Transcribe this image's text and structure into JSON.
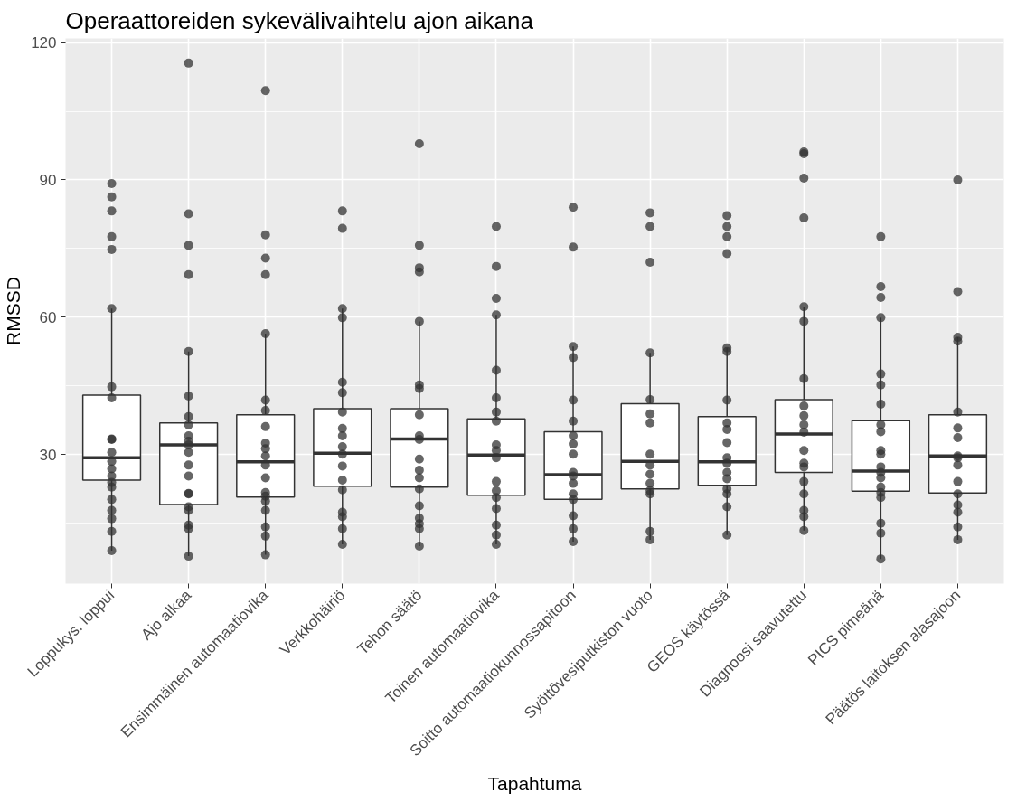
{
  "chart_data": {
    "type": "box",
    "title": "Operaattoreiden sykevälivaihtelu ajon aikana",
    "xlabel": "Tapahtuma",
    "ylabel": "RMSSD",
    "categories": [
      "Loppukys. loppui",
      "Ajo alkaa",
      "Ensimmäinen automaatiovika",
      "Verkkohäiriö",
      "Tehon säätö",
      "Toinen automaatiovika",
      "Soitto automaatiokunnossapitoon",
      "Syöttövesiputkiston vuoto",
      "GEOS käytössä",
      "Diagnoosi saavutettu",
      "PICS pimeänä",
      "Päätös laitoksen alasajoon"
    ],
    "boxes": [
      {
        "low": 9.0,
        "q1": 24.4,
        "median": 29.3,
        "q3": 43.0,
        "high": 61.9
      },
      {
        "low": 7.8,
        "q1": 19.1,
        "median": 32.1,
        "q3": 36.9,
        "high": 52.5
      },
      {
        "low": 8.1,
        "q1": 20.7,
        "median": 28.4,
        "q3": 38.7,
        "high": 56.4
      },
      {
        "low": 10.4,
        "q1": 23.1,
        "median": 30.3,
        "q3": 40.0,
        "high": 61.9
      },
      {
        "low": 10.0,
        "q1": 22.9,
        "median": 33.4,
        "q3": 40.0,
        "high": 59.1
      },
      {
        "low": 10.4,
        "q1": 21.1,
        "median": 29.9,
        "q3": 37.8,
        "high": 60.5
      },
      {
        "low": 11.0,
        "q1": 20.2,
        "median": 25.6,
        "q3": 35.0,
        "high": 53.6
      },
      {
        "low": 11.4,
        "q1": 22.5,
        "median": 28.5,
        "q3": 41.1,
        "high": 52.2
      },
      {
        "low": 12.4,
        "q1": 23.3,
        "median": 28.4,
        "q3": 38.3,
        "high": 53.3
      },
      {
        "low": 13.4,
        "q1": 26.1,
        "median": 34.5,
        "q3": 42.0,
        "high": 62.3
      },
      {
        "low": 7.2,
        "q1": 22.0,
        "median": 26.4,
        "q3": 37.4,
        "high": 59.9
      },
      {
        "low": 11.4,
        "q1": 21.6,
        "median": 29.7,
        "q3": 38.7,
        "high": 55.6
      }
    ],
    "series": [
      {
        "type": "scatter",
        "color": "#333333",
        "x": [
          "Loppukys. loppui",
          "Loppukys. loppui",
          "Loppukys. loppui",
          "Loppukys. loppui",
          "Loppukys. loppui",
          "Loppukys. loppui",
          "Loppukys. loppui",
          "Loppukys. loppui",
          "Loppukys. loppui",
          "Loppukys. loppui",
          "Loppukys. loppui",
          "Loppukys. loppui",
          "Loppukys. loppui",
          "Loppukys. loppui",
          "Loppukys. loppui",
          "Loppukys. loppui",
          "Loppukys. loppui",
          "Loppukys. loppui",
          "Loppukys. loppui",
          "Loppukys. loppui",
          "Loppukys. loppui",
          "Ajo alkaa",
          "Ajo alkaa",
          "Ajo alkaa",
          "Ajo alkaa",
          "Ajo alkaa",
          "Ajo alkaa",
          "Ajo alkaa",
          "Ajo alkaa",
          "Ajo alkaa",
          "Ajo alkaa",
          "Ajo alkaa",
          "Ajo alkaa",
          "Ajo alkaa",
          "Ajo alkaa",
          "Ajo alkaa",
          "Ajo alkaa",
          "Ajo alkaa",
          "Ajo alkaa",
          "Ajo alkaa",
          "Ajo alkaa",
          "Ajo alkaa",
          "Ensimmäinen automaatiovika",
          "Ensimmäinen automaatiovika",
          "Ensimmäinen automaatiovika",
          "Ensimmäinen automaatiovika",
          "Ensimmäinen automaatiovika",
          "Ensimmäinen automaatiovika",
          "Ensimmäinen automaatiovika",
          "Ensimmäinen automaatiovika",
          "Ensimmäinen automaatiovika",
          "Ensimmäinen automaatiovika",
          "Ensimmäinen automaatiovika",
          "Ensimmäinen automaatiovika",
          "Ensimmäinen automaatiovika",
          "Ensimmäinen automaatiovika",
          "Ensimmäinen automaatiovika",
          "Ensimmäinen automaatiovika",
          "Ensimmäinen automaatiovika",
          "Ensimmäinen automaatiovika",
          "Ensimmäinen automaatiovika",
          "Ensimmäinen automaatiovika",
          "Verkkohäiriö",
          "Verkkohäiriö",
          "Verkkohäiriö",
          "Verkkohäiriö",
          "Verkkohäiriö",
          "Verkkohäiriö",
          "Verkkohäiriö",
          "Verkkohäiriö",
          "Verkkohäiriö",
          "Verkkohäiriö",
          "Verkkohäiriö",
          "Verkkohäiriö",
          "Verkkohäiriö",
          "Verkkohäiriö",
          "Verkkohäiriö",
          "Verkkohäiriö",
          "Verkkohäiriö",
          "Verkkohäiriö",
          "Tehon säätö",
          "Tehon säätö",
          "Tehon säätö",
          "Tehon säätö",
          "Tehon säätö",
          "Tehon säätö",
          "Tehon säätö",
          "Tehon säätö",
          "Tehon säätö",
          "Tehon säätö",
          "Tehon säätö",
          "Tehon säätö",
          "Tehon säätö",
          "Tehon säätö",
          "Tehon säätö",
          "Tehon säätö",
          "Tehon säätö",
          "Tehon säätö",
          "Tehon säätö",
          "Toinen automaatiovika",
          "Toinen automaatiovika",
          "Toinen automaatiovika",
          "Toinen automaatiovika",
          "Toinen automaatiovika",
          "Toinen automaatiovika",
          "Toinen automaatiovika",
          "Toinen automaatiovika",
          "Toinen automaatiovika",
          "Toinen automaatiovika",
          "Toinen automaatiovika",
          "Toinen automaatiovika",
          "Toinen automaatiovika",
          "Toinen automaatiovika",
          "Toinen automaatiovika",
          "Toinen automaatiovika",
          "Toinen automaatiovika",
          "Toinen automaatiovika",
          "Soitto automaatiokunnossapitoon",
          "Soitto automaatiokunnossapitoon",
          "Soitto automaatiokunnossapitoon",
          "Soitto automaatiokunnossapitoon",
          "Soitto automaatiokunnossapitoon",
          "Soitto automaatiokunnossapitoon",
          "Soitto automaatiokunnossapitoon",
          "Soitto automaatiokunnossapitoon",
          "Soitto automaatiokunnossapitoon",
          "Soitto automaatiokunnossapitoon",
          "Soitto automaatiokunnossapitoon",
          "Soitto automaatiokunnossapitoon",
          "Soitto automaatiokunnossapitoon",
          "Soitto automaatiokunnossapitoon",
          "Soitto automaatiokunnossapitoon",
          "Soitto automaatiokunnossapitoon",
          "Soitto automaatiokunnossapitoon",
          "Syöttövesiputkiston vuoto",
          "Syöttövesiputkiston vuoto",
          "Syöttövesiputkiston vuoto",
          "Syöttövesiputkiston vuoto",
          "Syöttövesiputkiston vuoto",
          "Syöttövesiputkiston vuoto",
          "Syöttövesiputkiston vuoto",
          "Syöttövesiputkiston vuoto",
          "Syöttövesiputkiston vuoto",
          "Syöttövesiputkiston vuoto",
          "Syöttövesiputkiston vuoto",
          "Syöttövesiputkiston vuoto",
          "Syöttövesiputkiston vuoto",
          "Syöttövesiputkiston vuoto",
          "Syöttövesiputkiston vuoto",
          "GEOS käytössä",
          "GEOS käytössä",
          "GEOS käytössä",
          "GEOS käytössä",
          "GEOS käytössä",
          "GEOS käytössä",
          "GEOS käytössä",
          "GEOS käytössä",
          "GEOS käytössä",
          "GEOS käytössä",
          "GEOS käytössä",
          "GEOS käytössä",
          "GEOS käytössä",
          "GEOS käytössä",
          "GEOS käytössä",
          "GEOS käytössä",
          "GEOS käytössä",
          "GEOS käytössä",
          "Diagnoosi saavutettu",
          "Diagnoosi saavutettu",
          "Diagnoosi saavutettu",
          "Diagnoosi saavutettu",
          "Diagnoosi saavutettu",
          "Diagnoosi saavutettu",
          "Diagnoosi saavutettu",
          "Diagnoosi saavutettu",
          "Diagnoosi saavutettu",
          "Diagnoosi saavutettu",
          "Diagnoosi saavutettu",
          "Diagnoosi saavutettu",
          "Diagnoosi saavutettu",
          "Diagnoosi saavutettu",
          "Diagnoosi saavutettu",
          "Diagnoosi saavutettu",
          "Diagnoosi saavutettu",
          "Diagnoosi saavutettu",
          "Diagnoosi saavutettu",
          "PICS pimeänä",
          "PICS pimeänä",
          "PICS pimeänä",
          "PICS pimeänä",
          "PICS pimeänä",
          "PICS pimeänä",
          "PICS pimeänä",
          "PICS pimeänä",
          "PICS pimeänä",
          "PICS pimeänä",
          "PICS pimeänä",
          "PICS pimeänä",
          "PICS pimeänä",
          "PICS pimeänä",
          "PICS pimeänä",
          "PICS pimeänä",
          "PICS pimeänä",
          "PICS pimeänä",
          "PICS pimeänä",
          "PICS pimeänä",
          "Päätös laitoksen alasajoon",
          "Päätös laitoksen alasajoon",
          "Päätös laitoksen alasajoon",
          "Päätös laitoksen alasajoon",
          "Päätös laitoksen alasajoon",
          "Päätös laitoksen alasajoon",
          "Päätös laitoksen alasajoon",
          "Päätös laitoksen alasajoon",
          "Päätös laitoksen alasajoon",
          "Päätös laitoksen alasajoon",
          "Päätös laitoksen alasajoon",
          "Päätös laitoksen alasajoon",
          "Päätös laitoksen alasajoon",
          "Päätös laitoksen alasajoon",
          "Päätös laitoksen alasajoon",
          "Päätös laitoksen alasajoon"
        ],
        "values": [
          89.2,
          86.3,
          83.2,
          77.6,
          74.8,
          61.9,
          44.8,
          42.4,
          33.4,
          33.3,
          30.5,
          28.5,
          26.9,
          25.3,
          23.9,
          22.9,
          20.2,
          17.8,
          16.0,
          13.2,
          9.0,
          115.5,
          82.6,
          75.7,
          69.3,
          52.5,
          42.8,
          38.3,
          36.5,
          34.1,
          32.9,
          32.1,
          30.5,
          27.7,
          25.3,
          21.5,
          21.4,
          18.6,
          17.8,
          14.6,
          13.8,
          7.8,
          109.5,
          78.0,
          72.9,
          69.3,
          56.4,
          41.9,
          39.6,
          36.1,
          32.5,
          31.3,
          29.7,
          27.7,
          24.9,
          21.7,
          20.9,
          19.8,
          17.8,
          14.2,
          12.2,
          8.1,
          83.2,
          79.4,
          61.9,
          59.9,
          45.8,
          43.5,
          39.3,
          35.7,
          34.1,
          31.7,
          30.1,
          27.5,
          24.4,
          22.3,
          17.4,
          16.4,
          13.8,
          10.4,
          97.9,
          75.7,
          70.8,
          69.9,
          59.1,
          45.2,
          44.4,
          38.7,
          34.1,
          33.3,
          29.0,
          26.6,
          24.9,
          22.5,
          18.8,
          16.1,
          14.9,
          13.8,
          10.0,
          79.8,
          71.1,
          64.1,
          60.5,
          48.4,
          42.4,
          39.3,
          37.3,
          32.1,
          30.9,
          29.3,
          24.1,
          22.1,
          20.6,
          18.2,
          14.6,
          12.4,
          10.4,
          84.0,
          75.3,
          53.6,
          51.2,
          41.9,
          37.3,
          34.1,
          32.3,
          30.1,
          26.1,
          25.3,
          23.7,
          21.4,
          20.2,
          16.6,
          13.8,
          11.0,
          82.8,
          79.8,
          72.0,
          52.2,
          42.0,
          38.9,
          36.9,
          30.1,
          27.7,
          25.7,
          23.7,
          22.1,
          21.4,
          13.2,
          11.4,
          82.2,
          79.8,
          77.6,
          73.9,
          53.3,
          52.5,
          41.9,
          36.9,
          35.5,
          32.6,
          29.3,
          28.1,
          26.1,
          24.7,
          22.5,
          21.4,
          18.6,
          12.4,
          96.1,
          95.7,
          90.4,
          81.7,
          62.3,
          59.1,
          46.6,
          40.6,
          38.5,
          36.5,
          34.9,
          30.9,
          28.1,
          27.3,
          24.1,
          21.4,
          17.8,
          16.4,
          13.4,
          77.6,
          66.7,
          64.3,
          59.9,
          47.6,
          45.2,
          41.0,
          36.5,
          35.0,
          30.9,
          30.1,
          27.3,
          26.1,
          24.9,
          22.9,
          21.7,
          20.6,
          15.0,
          12.8,
          7.2,
          90.0,
          65.6,
          55.6,
          54.8,
          39.3,
          35.8,
          33.7,
          29.7,
          29.3,
          27.7,
          24.1,
          21.4,
          19.0,
          17.4,
          14.2,
          11.4
        ]
      }
    ],
    "marker": "circle",
    "ylim": [
      1.8,
      120.9
    ],
    "yticks": [
      30,
      60,
      90,
      120
    ],
    "grid": true
  }
}
